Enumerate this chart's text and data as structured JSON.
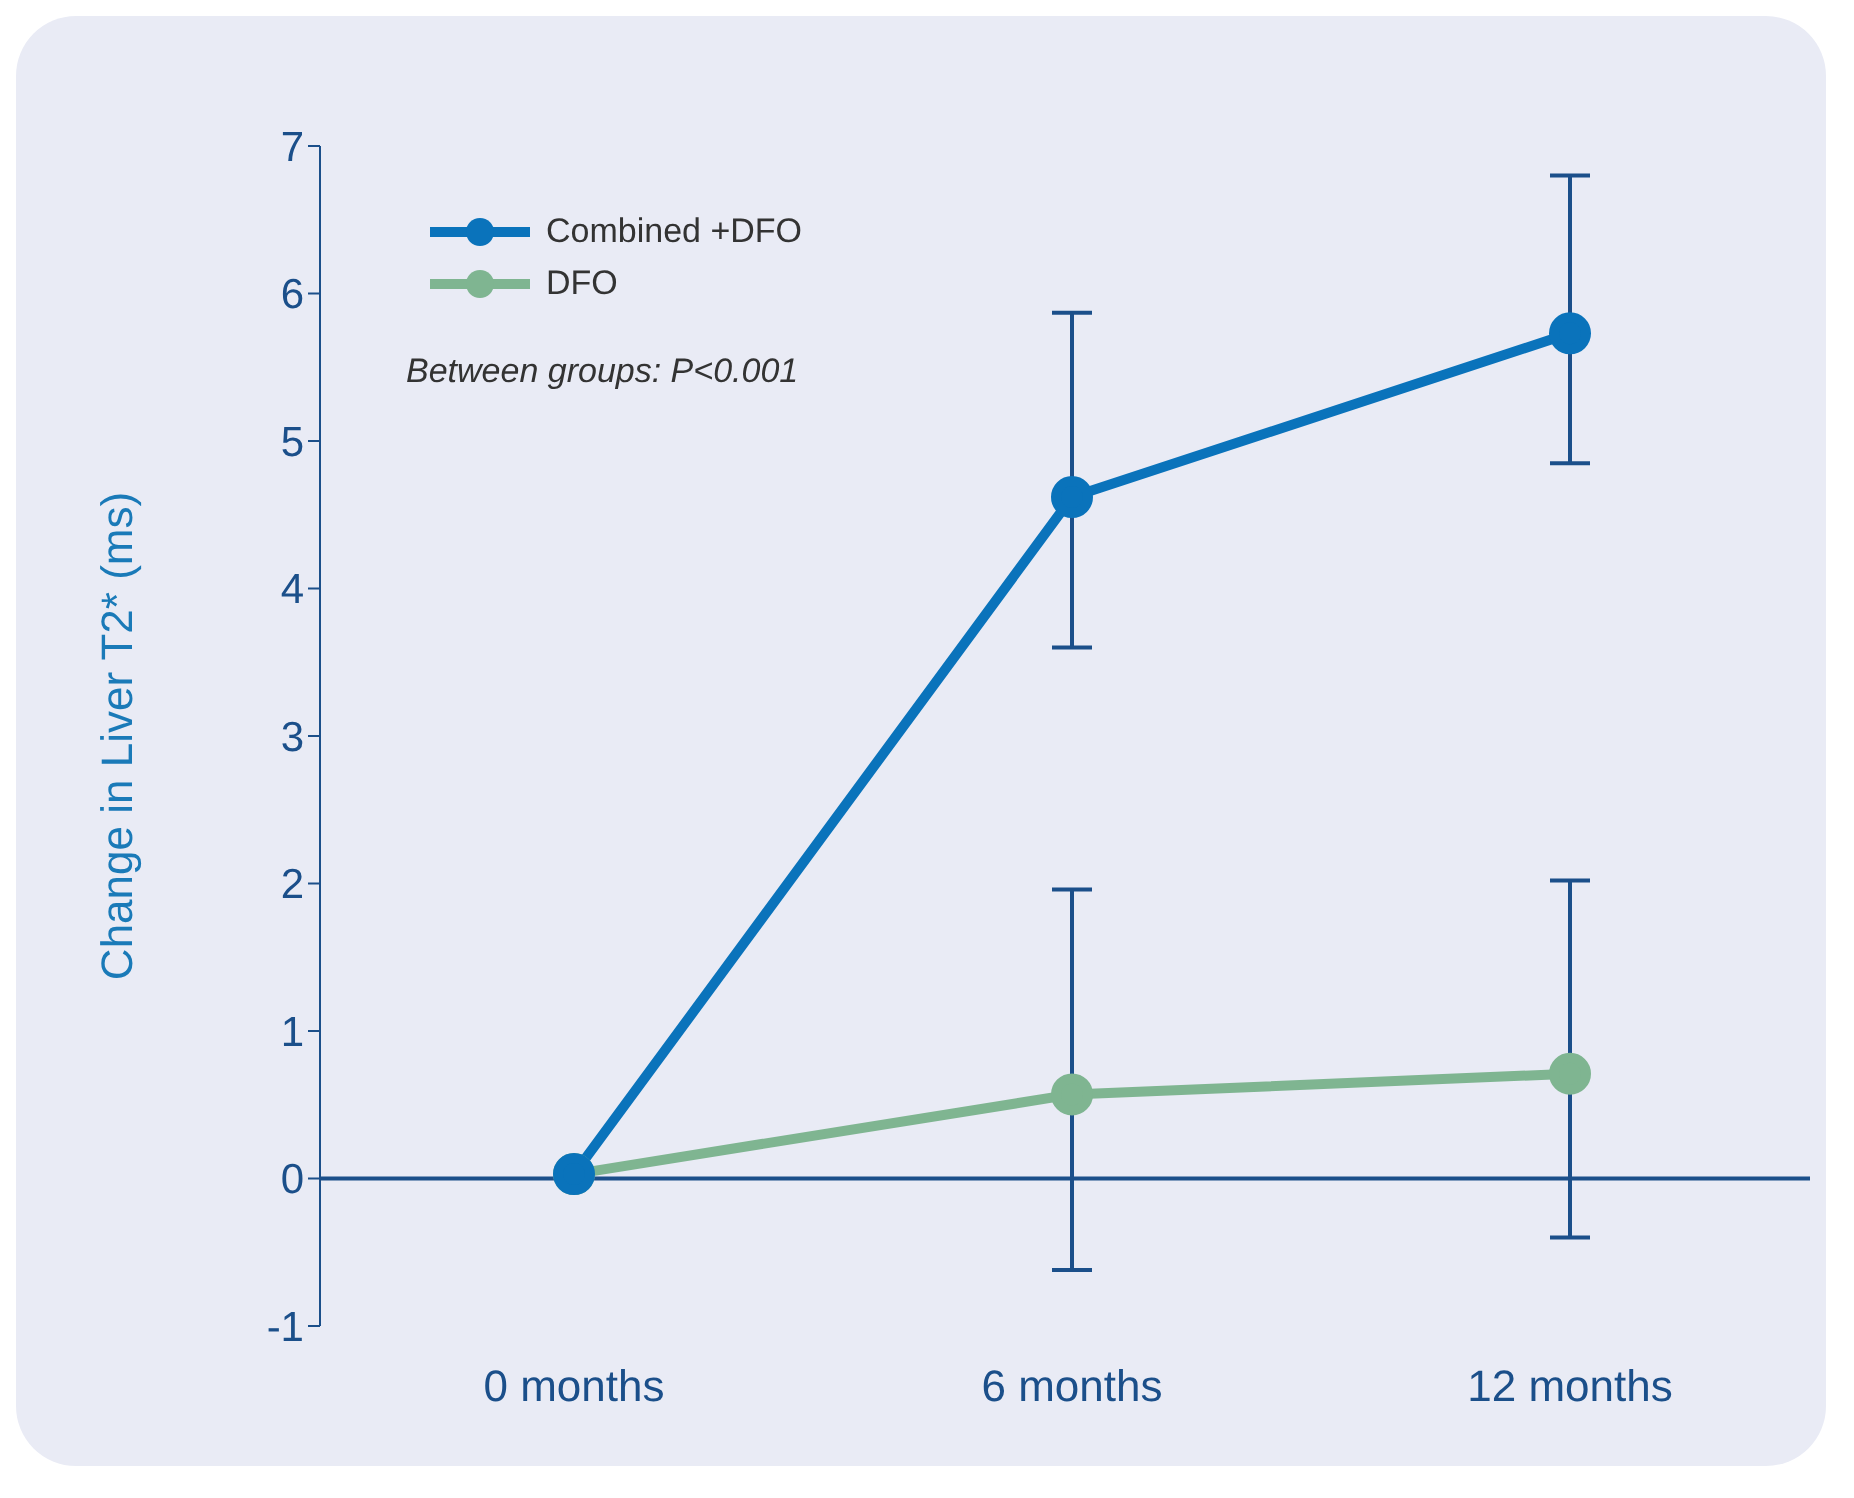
{
  "chart_data": {
    "type": "line",
    "ylabel": "Change in Liver T2* (ms)",
    "categories": [
      "0 months",
      "6 months",
      "12 months"
    ],
    "series": [
      {
        "name": "Combined +DFO",
        "color": "#0a73bb",
        "values": [
          0.03,
          4.62,
          5.73
        ],
        "errors": [
          null,
          [
            3.6,
            5.87
          ],
          [
            4.85,
            6.8
          ]
        ]
      },
      {
        "name": "DFO",
        "color": "#7fb591",
        "values": [
          0.03,
          0.57,
          0.71
        ],
        "errors": [
          null,
          [
            -0.62,
            1.96
          ],
          [
            -0.4,
            2.02
          ]
        ]
      }
    ],
    "ylim": [
      -1,
      7
    ],
    "yticks": [
      -1,
      0,
      1,
      2,
      3,
      4,
      5,
      6,
      7
    ],
    "ref_lines": [
      {
        "axis": "y",
        "value": 0,
        "color": "#1b4f8a"
      }
    ],
    "annotations": [
      "Between groups: P<0.001"
    ],
    "legend": "top left",
    "marker": "circle",
    "line_style": "solid"
  }
}
